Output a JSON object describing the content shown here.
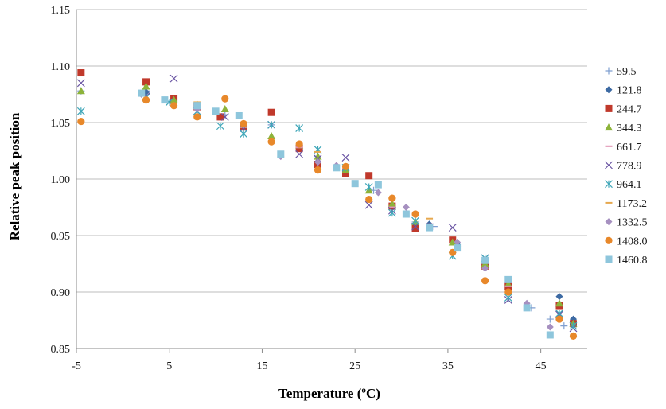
{
  "chart_data": {
    "type": "scatter",
    "xlabel": "Temperature (ºC)",
    "ylabel": "Relative peak position",
    "xlim": [
      -5,
      50
    ],
    "ylim": [
      0.85,
      1.15
    ],
    "x_ticks": [
      -5,
      5,
      15,
      25,
      35,
      45
    ],
    "y_ticks": [
      0.85,
      0.9,
      0.95,
      1.0,
      1.05,
      1.1,
      1.15
    ],
    "y_tick_labels": [
      "0.85",
      "0.90",
      "0.95",
      "1.00",
      "1.05",
      "1.10",
      "1.15"
    ],
    "grid": "horizontal",
    "legend_position": "right",
    "series": [
      {
        "name": "59.5",
        "color": "#7f9fd0",
        "marker": "plus",
        "x": [
          -4.5,
          2.5,
          5.0,
          8.0,
          11.0,
          13.0,
          16.0,
          19.0,
          21.0,
          24.0,
          27.0,
          29.0,
          31.5,
          33.5,
          36.0,
          39.0,
          41.5,
          44.0,
          46.0,
          47.5
        ],
        "y": [
          1.078,
          1.078,
          1.068,
          1.063,
          1.057,
          1.047,
          1.048,
          1.03,
          1.02,
          1.008,
          0.99,
          0.974,
          0.962,
          0.958,
          0.94,
          0.923,
          0.902,
          0.886,
          0.876,
          0.87
        ]
      },
      {
        "name": "121.8",
        "color": "#3d6aa3",
        "marker": "diamond",
        "x": [
          2.5,
          8.0,
          13.0,
          19.0,
          24.0,
          29.0,
          33.0,
          36.0,
          39.0,
          41.5,
          47.0,
          48.5
        ],
        "y": [
          1.077,
          1.063,
          1.047,
          1.027,
          1.007,
          0.976,
          0.96,
          0.942,
          0.924,
          0.907,
          0.896,
          0.876
        ]
      },
      {
        "name": "244.7",
        "color": "#c0392b",
        "marker": "square",
        "x": [
          -4.5,
          2.5,
          5.5,
          8.0,
          10.5,
          13.0,
          16.0,
          19.0,
          21.0,
          24.0,
          26.5,
          29.0,
          31.5,
          35.5,
          39.0,
          41.5,
          47.0,
          48.5
        ],
        "y": [
          1.094,
          1.086,
          1.071,
          1.064,
          1.055,
          1.046,
          1.059,
          1.027,
          1.013,
          1.005,
          1.003,
          0.976,
          0.956,
          0.946,
          0.923,
          0.905,
          0.888,
          0.872
        ]
      },
      {
        "name": "344.3",
        "color": "#8db33a",
        "marker": "triangle",
        "x": [
          -4.5,
          2.5,
          5.5,
          8.0,
          11.0,
          13.0,
          16.0,
          19.0,
          21.0,
          24.0,
          26.5,
          29.0,
          31.5,
          35.5,
          39.0,
          41.5,
          47.0,
          48.5
        ],
        "y": [
          1.078,
          1.082,
          1.07,
          1.066,
          1.062,
          1.048,
          1.038,
          1.03,
          1.02,
          1.008,
          0.99,
          0.978,
          0.962,
          0.944,
          0.925,
          0.907,
          0.89,
          0.872
        ]
      },
      {
        "name": "661.7",
        "color": "#e08fb0",
        "marker": "dash",
        "x": [
          8.0,
          13.0,
          19.0,
          24.0,
          29.0,
          33.0,
          41.5
        ],
        "y": [
          1.063,
          1.046,
          1.028,
          1.009,
          0.975,
          0.96,
          0.905
        ]
      },
      {
        "name": "778.9",
        "color": "#6a55a3",
        "marker": "x",
        "x": [
          -4.5,
          2.5,
          5.5,
          8.0,
          11.0,
          13.0,
          16.0,
          19.0,
          21.0,
          24.0,
          26.5,
          29.0,
          31.5,
          35.5,
          39.0,
          41.5,
          47.0,
          48.5
        ],
        "y": [
          1.085,
          1.073,
          1.089,
          1.06,
          1.055,
          1.045,
          1.048,
          1.022,
          1.018,
          1.019,
          0.977,
          0.972,
          0.958,
          0.957,
          0.93,
          0.893,
          0.88,
          0.868
        ]
      },
      {
        "name": "964.1",
        "color": "#3ea6b8",
        "marker": "asterisk",
        "x": [
          -4.5,
          2.5,
          5.0,
          8.0,
          10.5,
          13.0,
          16.0,
          19.0,
          21.0,
          24.0,
          26.5,
          29.0,
          31.5,
          35.5,
          39.0,
          41.5,
          47.0,
          48.5
        ],
        "y": [
          1.06,
          1.072,
          1.068,
          1.06,
          1.047,
          1.04,
          1.048,
          1.045,
          1.026,
          1.01,
          0.993,
          0.97,
          0.963,
          0.932,
          0.93,
          0.895,
          0.881,
          0.87
        ]
      },
      {
        "name": "1173.2",
        "color": "#e6a84e",
        "marker": "dash",
        "x": [
          8.0,
          13.0,
          21.0,
          29.0,
          33.0
        ],
        "y": [
          1.068,
          1.05,
          1.024,
          0.983,
          0.965
        ]
      },
      {
        "name": "1332.5",
        "color": "#a690c0",
        "marker": "diamond",
        "x": [
          2.0,
          8.0,
          13.0,
          17.0,
          21.0,
          23.0,
          27.5,
          30.5,
          36.0,
          39.0,
          43.5,
          46.0
        ],
        "y": [
          1.075,
          1.062,
          1.048,
          1.02,
          1.015,
          1.012,
          0.988,
          0.975,
          0.944,
          0.921,
          0.89,
          0.869
        ]
      },
      {
        "name": "1408.0",
        "color": "#e8882a",
        "marker": "circle",
        "x": [
          -4.5,
          2.5,
          5.5,
          8.0,
          11.0,
          13.0,
          16.0,
          19.0,
          21.0,
          24.0,
          26.5,
          29.0,
          31.5,
          35.5,
          39.0,
          41.5,
          47.0,
          48.5
        ],
        "y": [
          1.051,
          1.07,
          1.065,
          1.055,
          1.071,
          1.049,
          1.033,
          1.031,
          1.008,
          1.011,
          0.982,
          0.983,
          0.969,
          0.935,
          0.91,
          0.9,
          0.876,
          0.861
        ]
      },
      {
        "name": "1460.8",
        "color": "#8ec6dc",
        "marker": "square",
        "x": [
          2.0,
          4.5,
          8.0,
          10.0,
          12.5,
          17.0,
          23.0,
          25.0,
          27.5,
          30.5,
          33.0,
          36.0,
          39.0,
          41.5,
          43.5,
          46.0
        ],
        "y": [
          1.076,
          1.07,
          1.065,
          1.06,
          1.056,
          1.022,
          1.01,
          0.996,
          0.995,
          0.969,
          0.957,
          0.939,
          0.928,
          0.911,
          0.886,
          0.862
        ]
      }
    ]
  }
}
